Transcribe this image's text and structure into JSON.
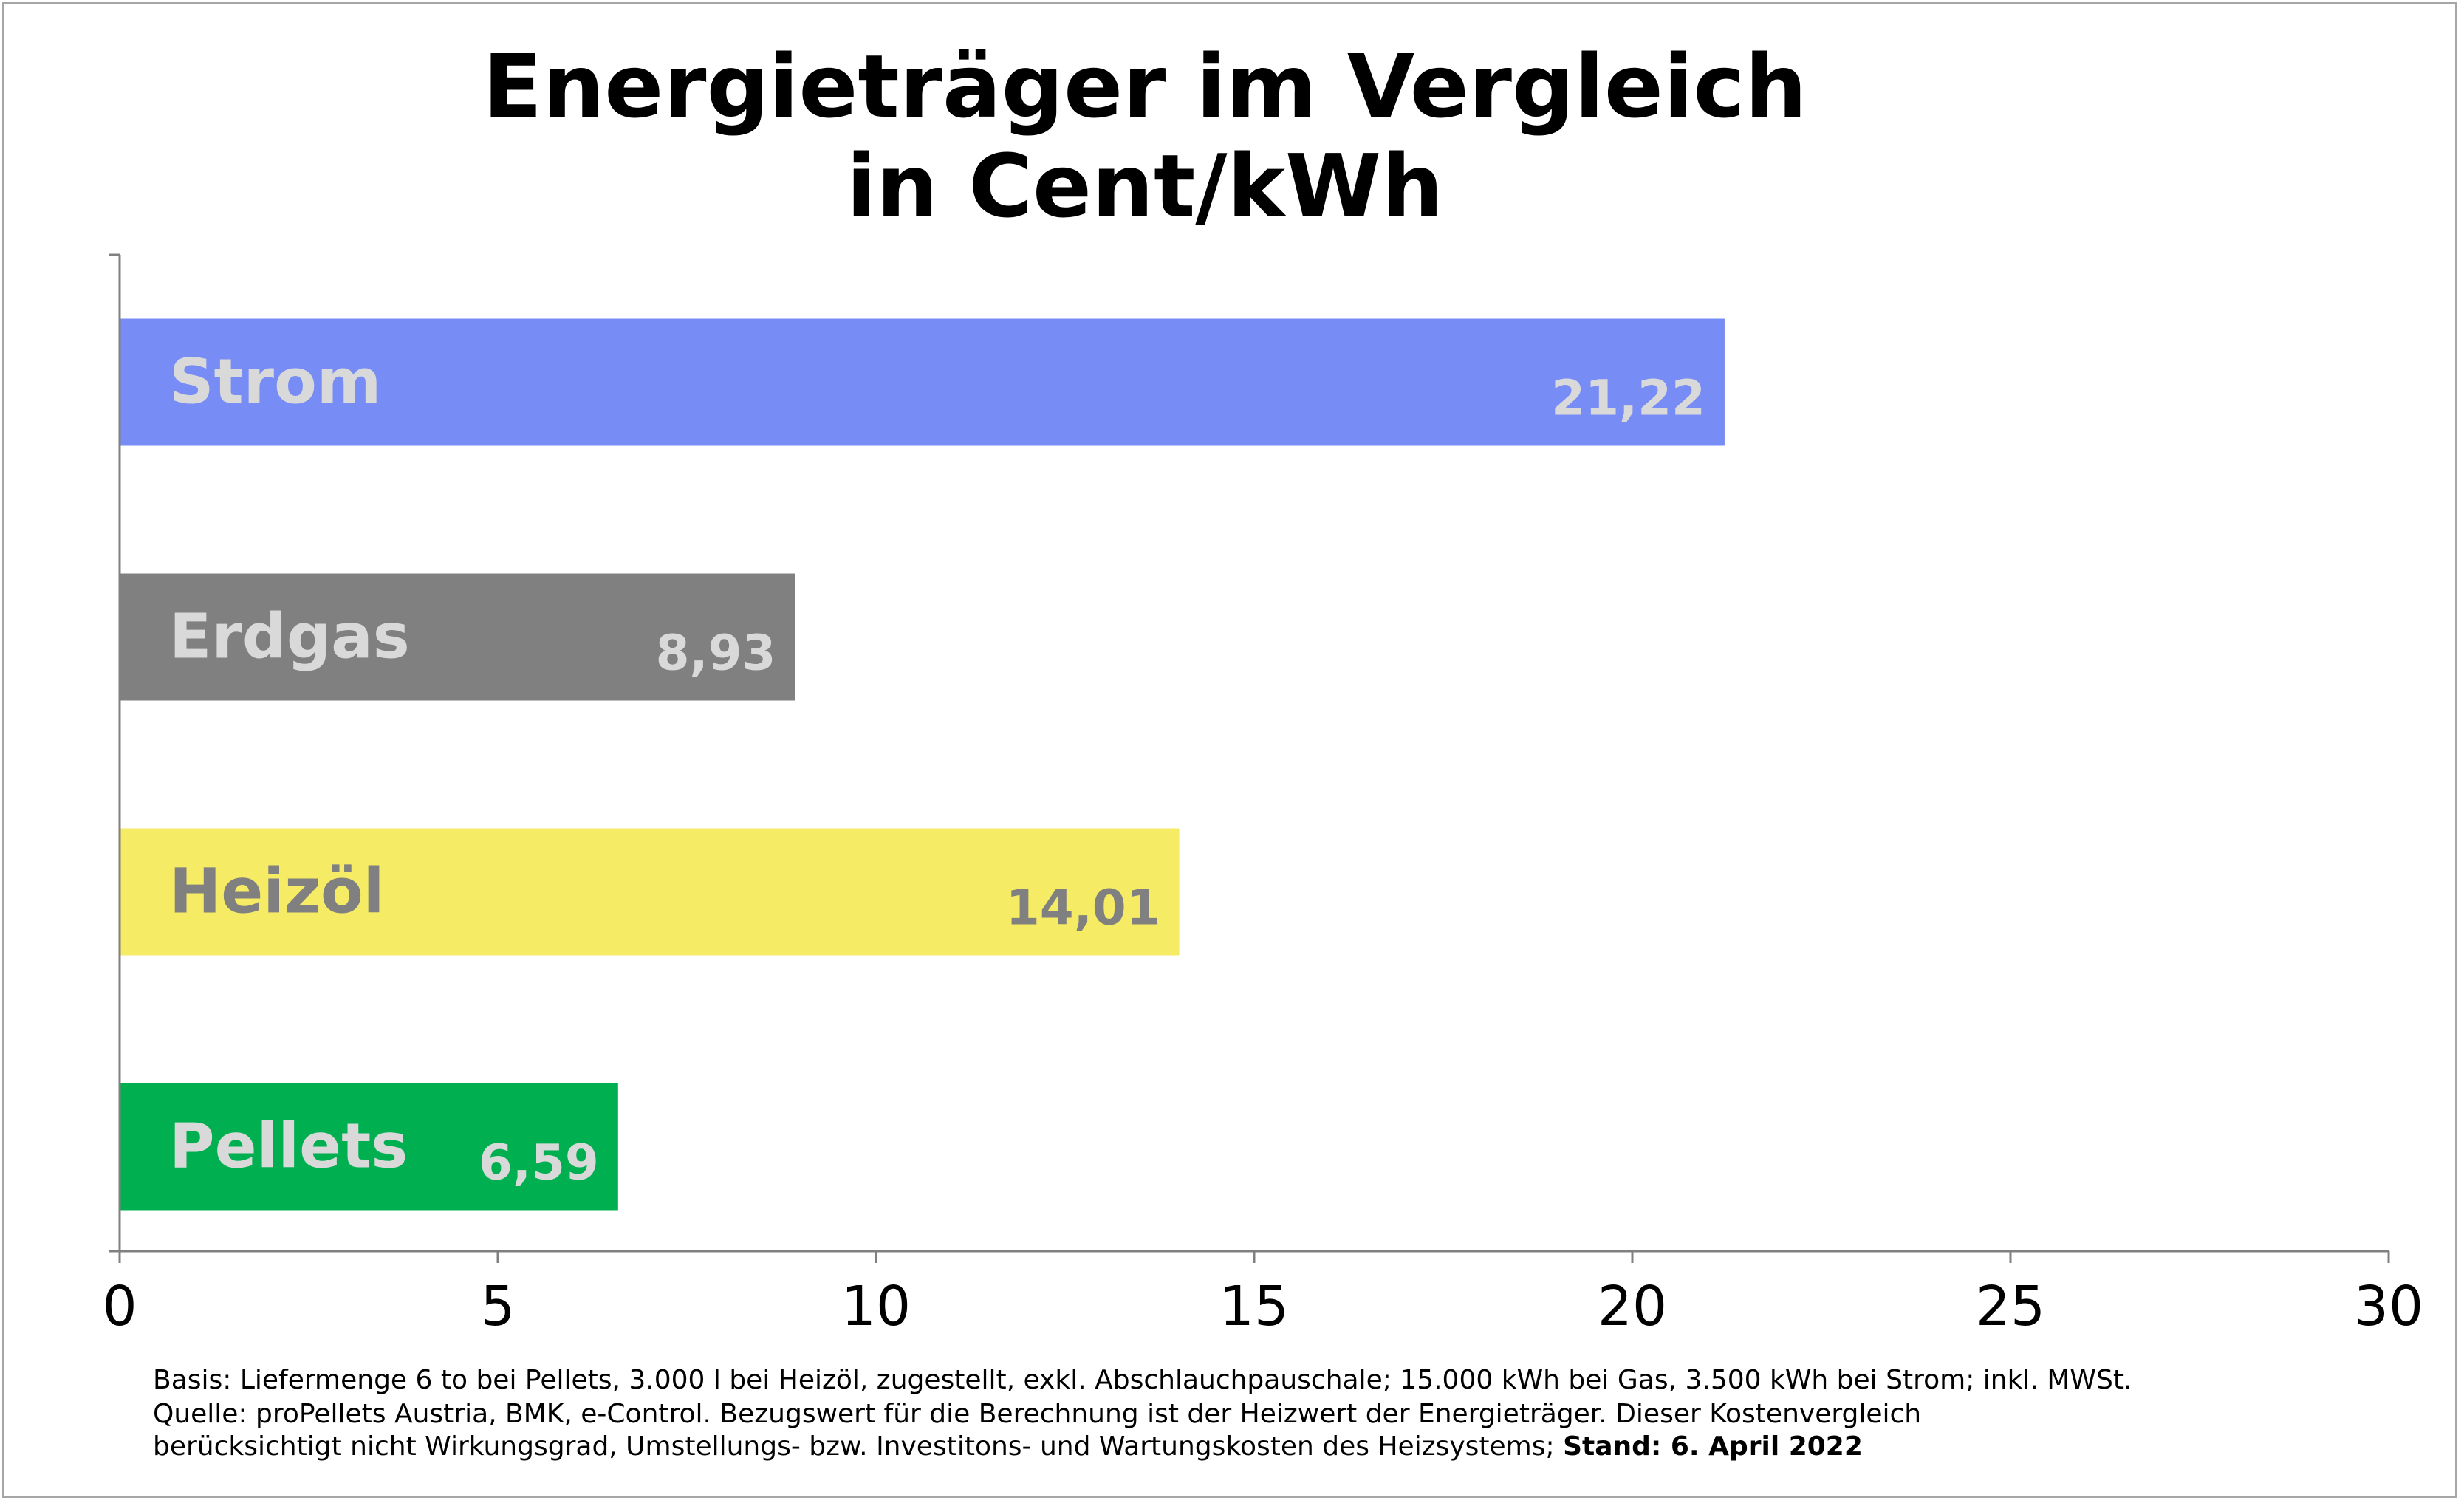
{
  "chart_data": {
    "type": "bar",
    "orientation": "horizontal",
    "title": "Energieträger im Vergleich in Cent/kWh",
    "title_lines": [
      "Energieträger im Vergleich",
      "in Cent/kWh"
    ],
    "categories": [
      "Strom",
      "Erdgas",
      "Heizöl",
      "Pellets"
    ],
    "values": [
      21.22,
      8.93,
      14.01,
      6.59
    ],
    "value_labels": [
      "21,22",
      "8,93",
      "14,01",
      "6,59"
    ],
    "colors": [
      "#778cf5",
      "#808080",
      "#f5eb64",
      "#00b050"
    ],
    "label_colors": [
      "#d9d9d9",
      "#d9d9d9",
      "#808080",
      "#d9d9d9"
    ],
    "xlim": [
      0,
      30
    ],
    "xticks": [
      0,
      5,
      10,
      15,
      20,
      25,
      30
    ],
    "xlabel": "",
    "ylabel": "",
    "grid": false,
    "legend": "none"
  },
  "footnote": {
    "line1": "Basis: Liefermenge 6 to bei Pellets, 3.000 l bei Heizöl, zugestellt, exkl. Abschlauchpauschale; 15.000 kWh bei Gas, 3.500 kWh bei Strom; inkl. MWSt.",
    "line2": "Quelle: proPellets Austria, BMK, e-Control. Bezugswert für die Berechnung ist der Heizwert der Energieträger. Dieser Kostenvergleich",
    "line3_regular": "berücksichtigt nicht Wirkungsgrad, Umstellungs- bzw. Investitons- und Wartungskosten des Heizsystems; ",
    "line3_bold": "Stand: 6. April 2022"
  }
}
